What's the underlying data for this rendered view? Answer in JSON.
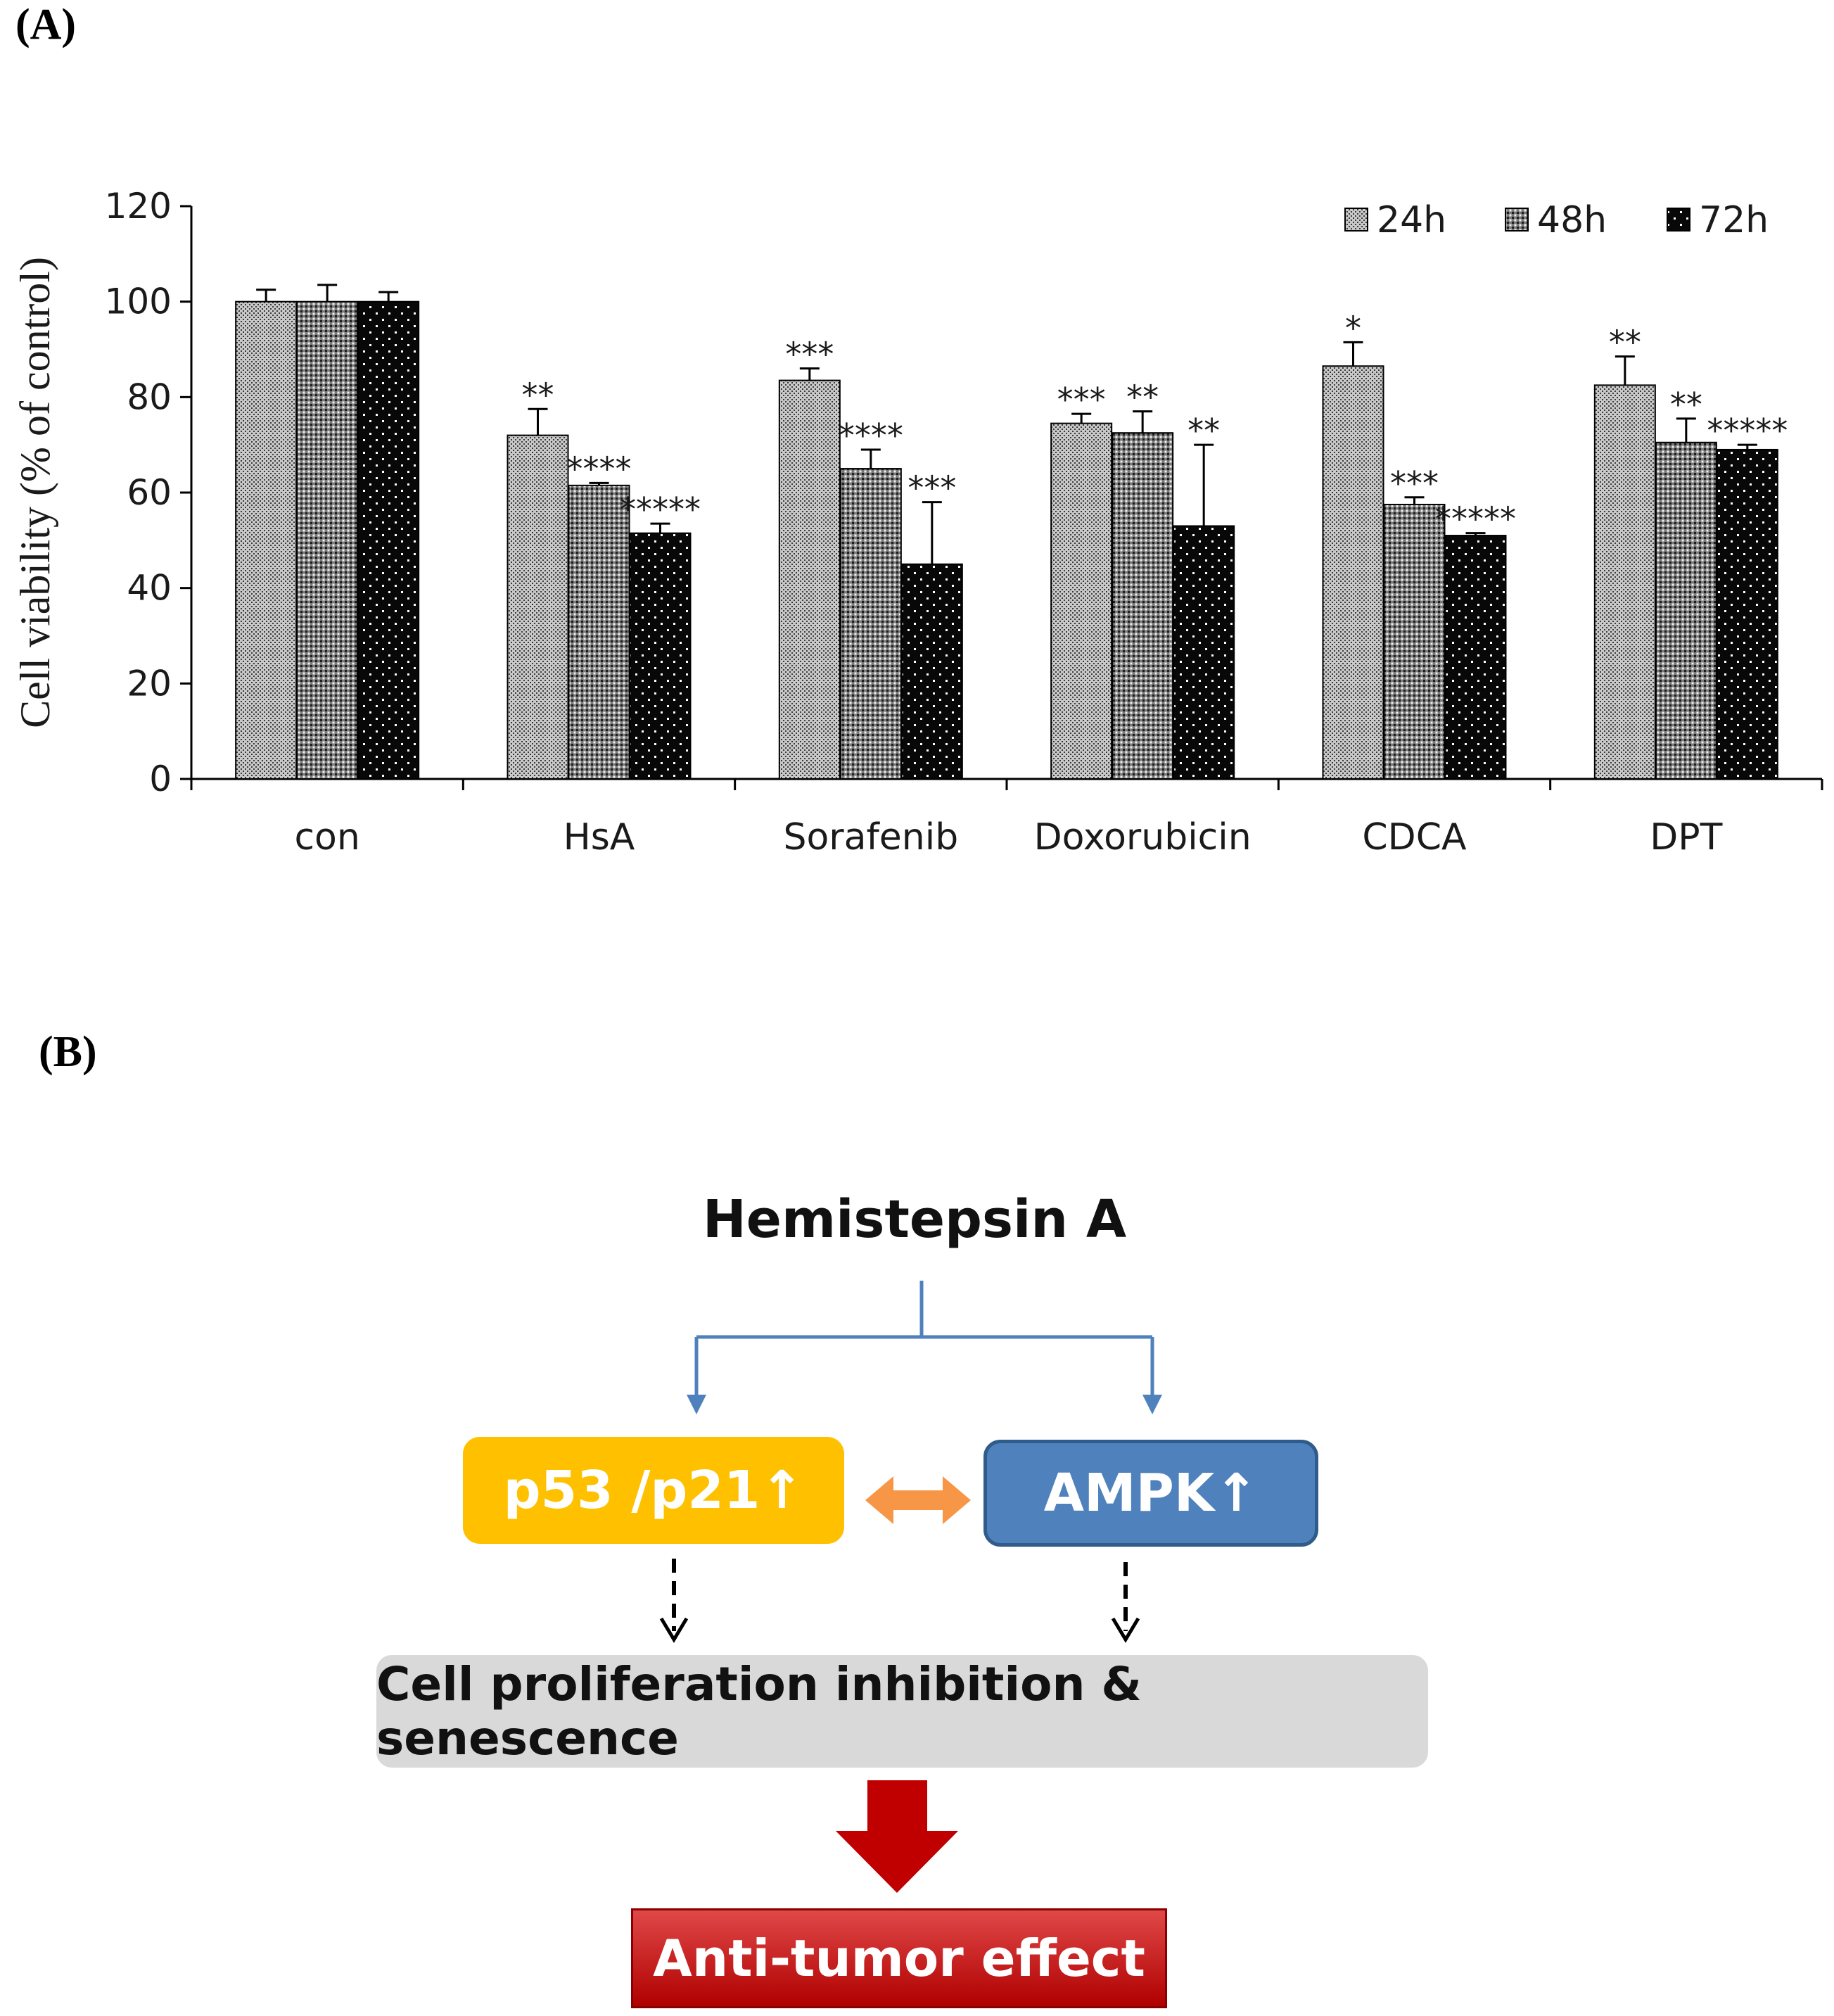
{
  "panel_a_label": "(A)",
  "panel_b_label": "(B)",
  "chart_data": {
    "type": "bar",
    "title": "",
    "xlabel": "",
    "ylabel": "Cell viability (% of control)",
    "ylim": [
      0,
      120
    ],
    "yticks": [
      0,
      20,
      40,
      60,
      80,
      100,
      120
    ],
    "categories": [
      "con",
      "HsA",
      "Sorafenib",
      "Doxorubicin",
      "CDCA",
      "DPT"
    ],
    "legend_position": "top-right",
    "series": [
      {
        "name": "24h",
        "values": [
          100,
          72,
          83.5,
          74.5,
          86.5,
          82.5
        ],
        "errors": [
          2.5,
          5.5,
          2.5,
          2,
          5,
          6
        ],
        "significance": [
          "",
          "**",
          "***",
          "***",
          "*",
          "**"
        ]
      },
      {
        "name": "48h",
        "values": [
          100,
          61.5,
          65,
          72.5,
          57.5,
          70.5
        ],
        "errors": [
          3.5,
          0.5,
          4,
          4.5,
          1.5,
          5
        ],
        "significance": [
          "",
          "****",
          "****",
          "**",
          "***",
          "**"
        ]
      },
      {
        "name": "72h",
        "values": [
          100,
          51.5,
          45,
          53,
          51,
          69
        ],
        "errors": [
          2,
          2,
          13,
          17,
          0.5,
          1
        ],
        "significance": [
          "",
          "*****",
          "***",
          "**",
          "*****",
          "*****"
        ]
      }
    ]
  },
  "diagram": {
    "title": "Hemistepsin A",
    "left_box": "p53 /p21↑",
    "right_box": "AMPK↑",
    "middle_box": "Cell proliferation inhibition & senescence",
    "result_box": "Anti-tumor effect",
    "colors": {
      "left_box": "#FFC000",
      "right_box": "#4F81BD",
      "right_box_border": "#2F5C8A",
      "middle_box": "#D9D9D9",
      "result_box": "#C00000",
      "blue_arrow": "#4F81BD",
      "double_arrow": "#F79646",
      "red_arrow": "#C00000"
    }
  }
}
